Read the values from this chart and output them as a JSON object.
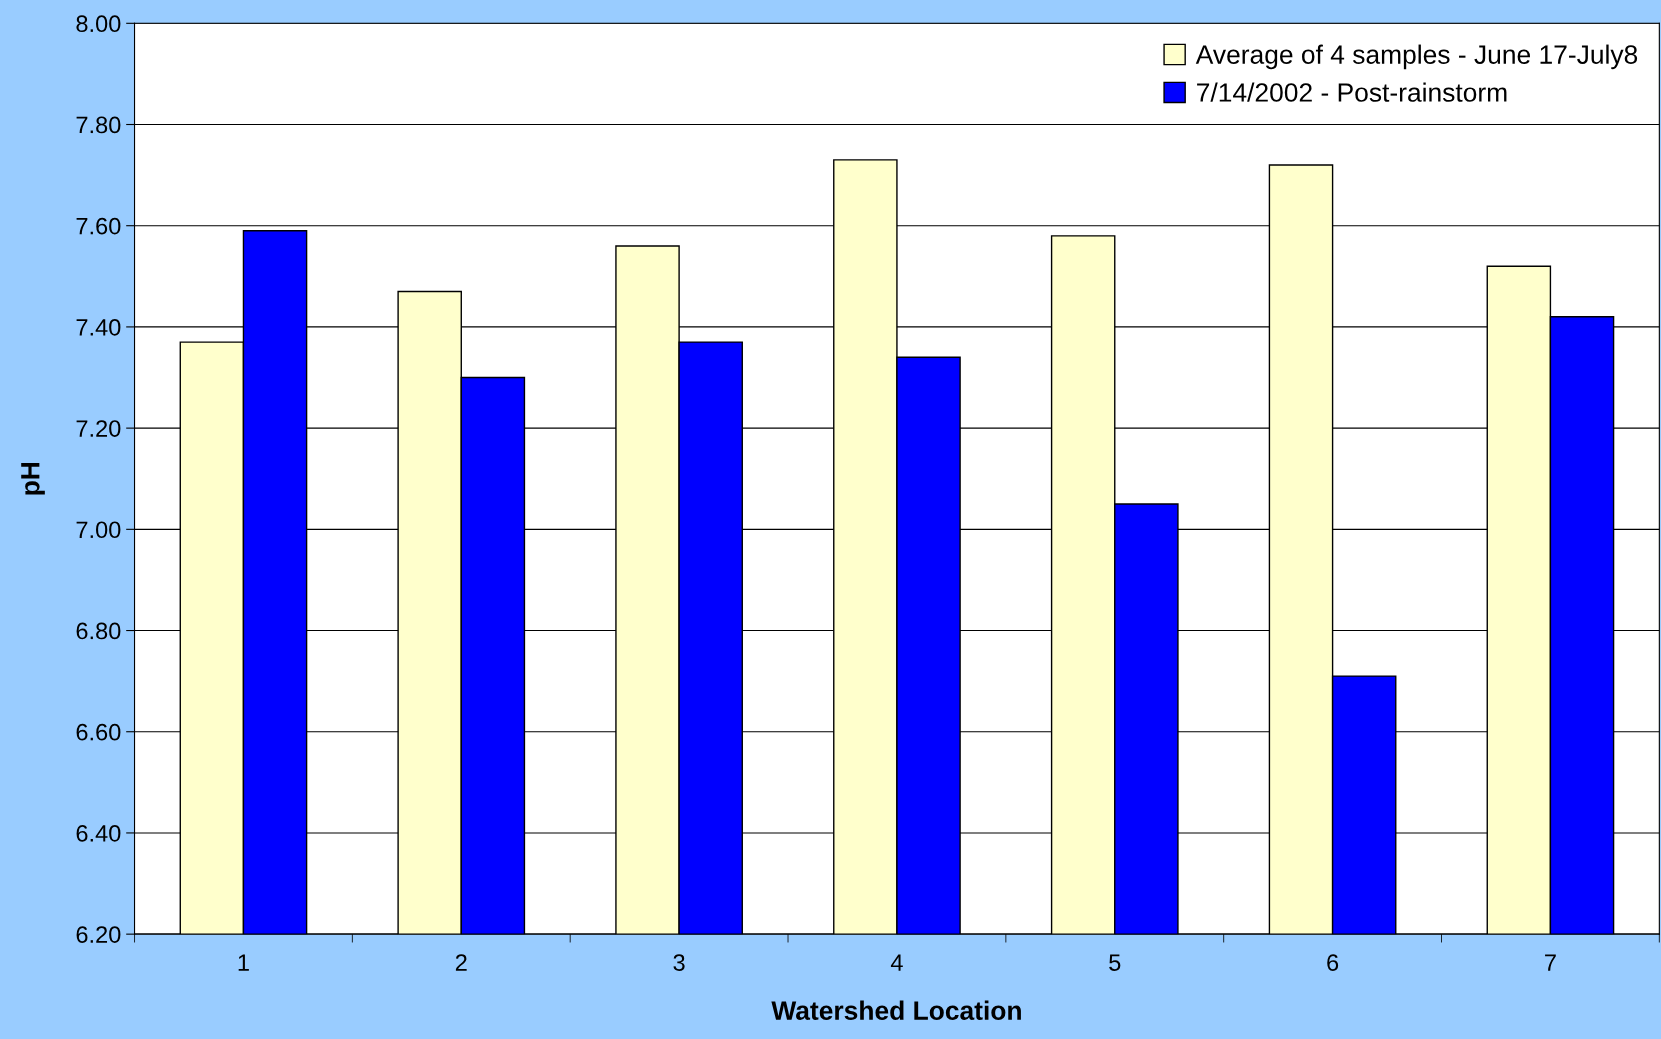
{
  "chart_data": {
    "type": "bar",
    "xlabel": "Watershed Location",
    "ylabel": "pH",
    "categories": [
      "1",
      "2",
      "3",
      "4",
      "5",
      "6",
      "7"
    ],
    "series": [
      {
        "name": "Average of 4 samples - June 17-July8",
        "color": "#ffffcc",
        "values": [
          7.37,
          7.47,
          7.56,
          7.73,
          7.58,
          7.72,
          7.52
        ]
      },
      {
        "name": "7/14/2002 - Post-rainstorm",
        "color": "#0000ff",
        "values": [
          7.59,
          7.3,
          7.37,
          7.34,
          7.05,
          6.71,
          7.42
        ]
      }
    ],
    "ylim": [
      6.2,
      8.0
    ],
    "yticks": [
      {
        "value": 6.2,
        "label": "6.20"
      },
      {
        "value": 6.4,
        "label": "6.40"
      },
      {
        "value": 6.6,
        "label": "6.60"
      },
      {
        "value": 6.8,
        "label": "6.80"
      },
      {
        "value": 7.0,
        "label": "7.00"
      },
      {
        "value": 7.2,
        "label": "7.20"
      },
      {
        "value": 7.4,
        "label": "7.40"
      },
      {
        "value": 7.6,
        "label": "7.60"
      },
      {
        "value": 7.8,
        "label": "7.80"
      },
      {
        "value": 8.0,
        "label": "8.00"
      }
    ],
    "grid": "y",
    "legend": "top right"
  }
}
